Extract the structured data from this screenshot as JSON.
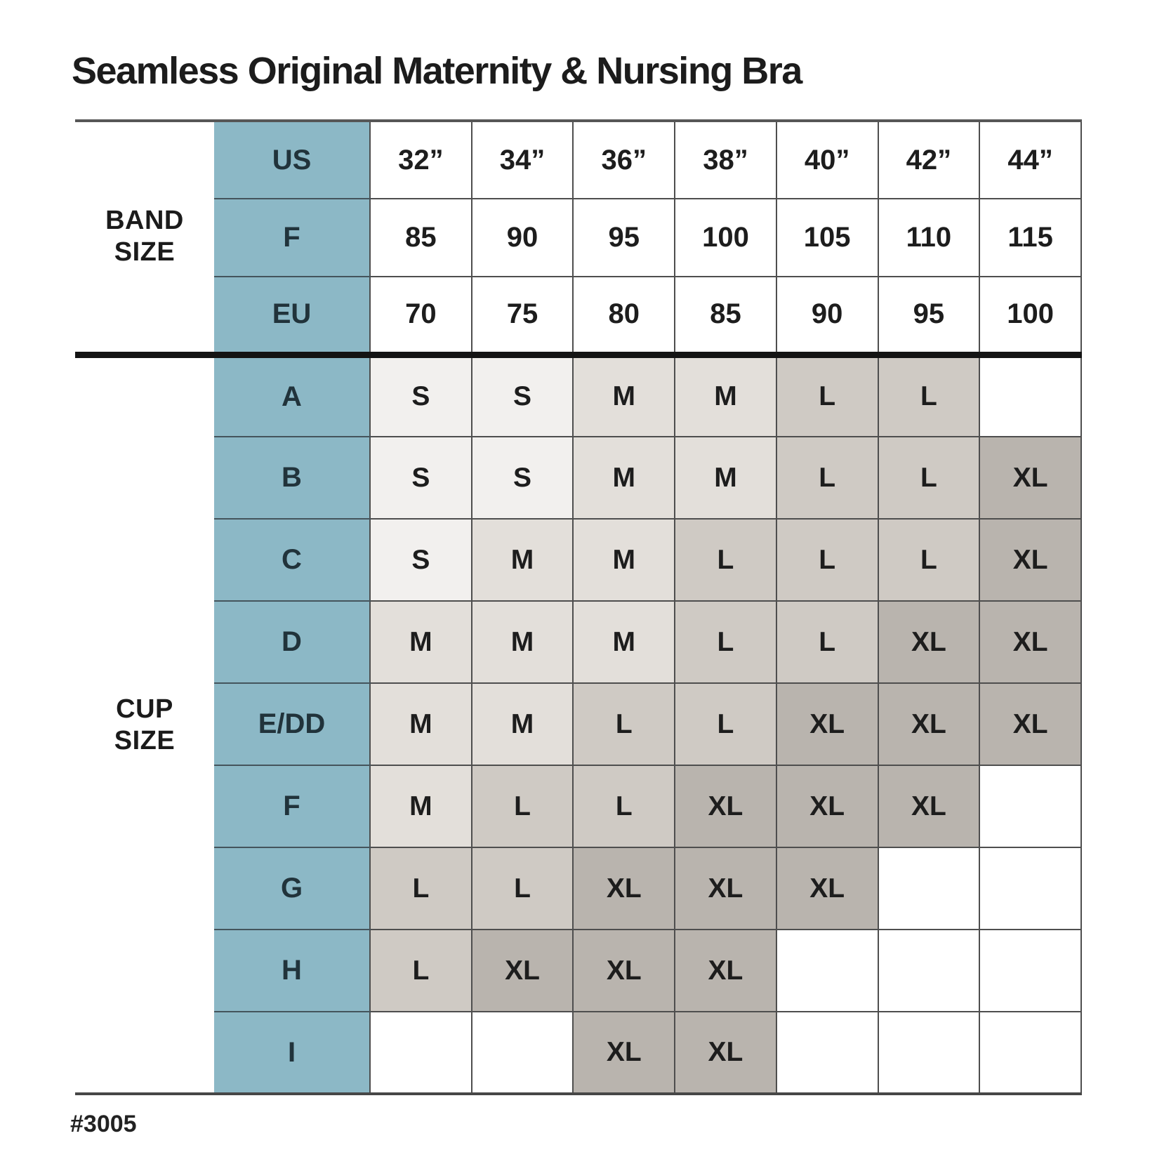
{
  "title": "Seamless Original Maternity & Nursing Bra",
  "product_code": "#3005",
  "colors": {
    "header_blue": "#8cb8c6",
    "cell_s": "#f2f0ee",
    "cell_m": "#e3dfda",
    "cell_l": "#cfcac4",
    "cell_xl": "#b9b4ae",
    "grid_line": "#4e4e4e",
    "section_divider": "#141414"
  },
  "chart_data": {
    "type": "table",
    "title": "Seamless Original Maternity & Nursing Bra",
    "band_section": {
      "label": "BAND\nSIZE",
      "rows": [
        {
          "label": "US",
          "values": [
            "32”",
            "34”",
            "36”",
            "38”",
            "40”",
            "42”",
            "44”"
          ]
        },
        {
          "label": "F",
          "values": [
            "85",
            "90",
            "95",
            "100",
            "105",
            "110",
            "115"
          ]
        },
        {
          "label": "EU",
          "values": [
            "70",
            "75",
            "80",
            "85",
            "90",
            "95",
            "100"
          ]
        }
      ]
    },
    "cup_section": {
      "label": "CUP\nSIZE",
      "rows": [
        {
          "label": "A",
          "values": [
            "S",
            "S",
            "M",
            "M",
            "L",
            "L",
            ""
          ]
        },
        {
          "label": "B",
          "values": [
            "S",
            "S",
            "M",
            "M",
            "L",
            "L",
            "XL"
          ]
        },
        {
          "label": "C",
          "values": [
            "S",
            "M",
            "M",
            "L",
            "L",
            "L",
            "XL"
          ]
        },
        {
          "label": "D",
          "values": [
            "M",
            "M",
            "M",
            "L",
            "L",
            "XL",
            "XL"
          ]
        },
        {
          "label": "E/DD",
          "values": [
            "M",
            "M",
            "L",
            "L",
            "XL",
            "XL",
            "XL"
          ]
        },
        {
          "label": "F",
          "values": [
            "M",
            "L",
            "L",
            "XL",
            "XL",
            "XL",
            ""
          ]
        },
        {
          "label": "G",
          "values": [
            "L",
            "L",
            "XL",
            "XL",
            "XL",
            "",
            ""
          ]
        },
        {
          "label": "H",
          "values": [
            "L",
            "XL",
            "XL",
            "XL",
            "",
            "",
            ""
          ]
        },
        {
          "label": "I",
          "values": [
            "",
            "",
            "XL",
            "XL",
            "",
            "",
            ""
          ]
        }
      ]
    }
  }
}
